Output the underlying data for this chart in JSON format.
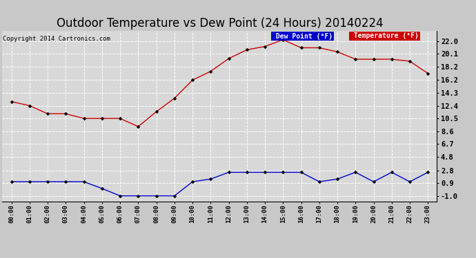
{
  "title": "Outdoor Temperature vs Dew Point (24 Hours) 20140224",
  "copyright": "Copyright 2014 Cartronics.com",
  "hours": [
    "00:00",
    "01:00",
    "02:00",
    "03:00",
    "04:00",
    "05:00",
    "06:00",
    "07:00",
    "08:00",
    "09:00",
    "10:00",
    "11:00",
    "12:00",
    "13:00",
    "14:00",
    "15:00",
    "16:00",
    "17:00",
    "18:00",
    "19:00",
    "20:00",
    "21:00",
    "22:00",
    "23:00"
  ],
  "temperature": [
    13.0,
    12.4,
    11.2,
    11.2,
    10.5,
    10.5,
    10.5,
    9.3,
    11.5,
    13.5,
    16.2,
    17.5,
    19.4,
    20.7,
    21.2,
    22.2,
    21.0,
    21.0,
    20.4,
    19.3,
    19.3,
    19.3,
    19.0,
    17.2
  ],
  "dew_point": [
    1.1,
    1.1,
    1.1,
    1.1,
    1.1,
    0.1,
    -1.0,
    -1.0,
    -1.0,
    -1.0,
    1.1,
    1.5,
    2.5,
    2.5,
    2.5,
    2.5,
    2.5,
    1.1,
    1.5,
    2.5,
    1.1,
    2.5,
    1.1,
    2.5
  ],
  "temp_color": "#cc0000",
  "dew_color": "#0000cc",
  "bg_color": "#c8c8c8",
  "plot_bg_color": "#d8d8d8",
  "grid_color": "#ffffff",
  "yticks": [
    22.0,
    20.1,
    18.2,
    16.2,
    14.3,
    12.4,
    10.5,
    8.6,
    6.7,
    4.8,
    2.8,
    0.9,
    -1.0
  ],
  "ylim": [
    -1.8,
    23.5
  ],
  "legend_dew_bg": "#0000cc",
  "legend_temp_bg": "#cc0000",
  "title_fontsize": 12,
  "marker": "D",
  "marker_size": 2.5,
  "linewidth": 1.0
}
